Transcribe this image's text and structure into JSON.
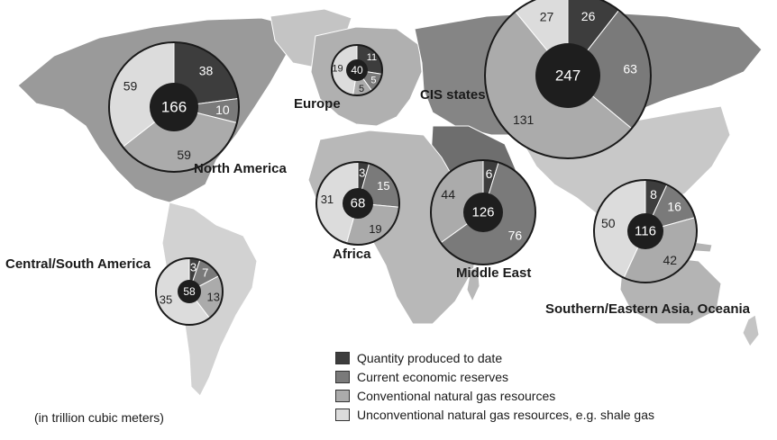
{
  "unit_note": "(in trillion cubic meters)",
  "categories": [
    {
      "key": "produced",
      "label": "Quantity produced to date",
      "color": "#3d3d3d"
    },
    {
      "key": "reserves",
      "label": "Current economic reserves",
      "color": "#7a7a7a"
    },
    {
      "key": "conventional",
      "label": "Conventional natural gas resources",
      "color": "#ababab"
    },
    {
      "key": "unconventional",
      "label": "Unconventional natural gas resources, e.g. shale gas",
      "color": "#dcdcdc"
    }
  ],
  "chart_data": [
    {
      "type": "pie",
      "region": "North America",
      "total": 166,
      "values": {
        "produced": 38,
        "reserves": 10,
        "conventional": 59,
        "unconventional": 59
      }
    },
    {
      "type": "pie",
      "region": "Europe",
      "total": 40,
      "values": {
        "produced": 11,
        "reserves": 5,
        "conventional": 5,
        "unconventional": 19
      }
    },
    {
      "type": "pie",
      "region": "CIS states",
      "total": 247,
      "values": {
        "produced": 26,
        "reserves": 63,
        "conventional": 131,
        "unconventional": 27
      }
    },
    {
      "type": "pie",
      "region": "Africa",
      "total": 68,
      "values": {
        "produced": 3,
        "reserves": 15,
        "conventional": 19,
        "unconventional": 31
      }
    },
    {
      "type": "pie",
      "region": "Middle East",
      "total": 126,
      "values": {
        "produced": 6,
        "reserves": 76,
        "conventional": 44,
        "unconventional": 0
      }
    },
    {
      "type": "pie",
      "region": "Central/South America",
      "total": 58,
      "values": {
        "produced": 3,
        "reserves": 7,
        "conventional": 13,
        "unconventional": 35
      }
    },
    {
      "type": "pie",
      "region": "Southern/Eastern Asia, Oceania",
      "total": 116,
      "values": {
        "produced": 8,
        "reserves": 16,
        "conventional": 42,
        "unconventional": 50
      }
    }
  ]
}
